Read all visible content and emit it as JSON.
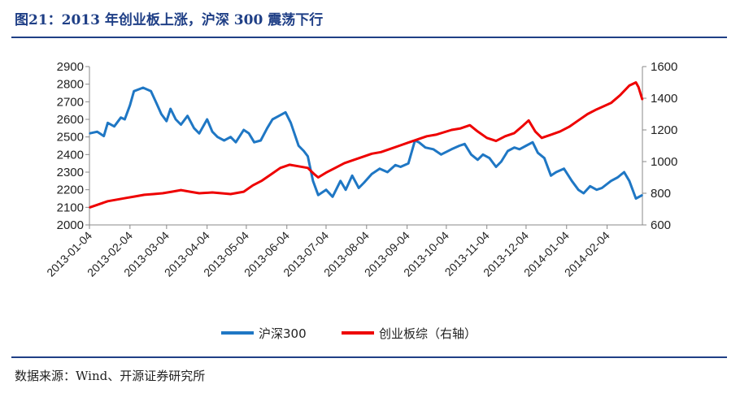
{
  "header": {
    "title": "图21：2013 年创业板上涨，沪深 300 震荡下行"
  },
  "footer": {
    "source": "数据来源：Wind、开源证券研究所"
  },
  "colors": {
    "title": "#1f3f86",
    "series_hs300": "#1f77c4",
    "series_gem": "#ee0000",
    "axis": "#888888"
  },
  "chart_data": {
    "type": "line",
    "title": "",
    "xlabel": "",
    "ylabel": "",
    "grid": false,
    "legend_position": "bottom",
    "x_ticks": [
      "2013-01-04",
      "2013-02-04",
      "2013-03-04",
      "2013-04-04",
      "2013-05-04",
      "2013-06-04",
      "2013-07-04",
      "2013-08-04",
      "2013-09-04",
      "2013-10-04",
      "2013-11-04",
      "2013-12-04",
      "2014-01-04",
      "2014-02-04"
    ],
    "y_left": {
      "ticks": [
        2000,
        2100,
        2200,
        2300,
        2400,
        2500,
        2600,
        2700,
        2800,
        2900
      ],
      "range": [
        2000,
        2900
      ]
    },
    "y_right": {
      "ticks": [
        600,
        800,
        1000,
        1200,
        1400,
        1600
      ],
      "range": [
        600,
        1600
      ]
    },
    "series": [
      {
        "name": "沪深300",
        "axis": "left",
        "points": [
          [
            "2013-01-04",
            2520
          ],
          [
            "2013-01-10",
            2530
          ],
          [
            "2013-01-15",
            2505
          ],
          [
            "2013-01-18",
            2580
          ],
          [
            "2013-01-23",
            2560
          ],
          [
            "2013-01-28",
            2610
          ],
          [
            "2013-01-31",
            2600
          ],
          [
            "2013-02-04",
            2680
          ],
          [
            "2013-02-07",
            2760
          ],
          [
            "2013-02-14",
            2780
          ],
          [
            "2013-02-20",
            2760
          ],
          [
            "2013-02-25",
            2680
          ],
          [
            "2013-02-28",
            2630
          ],
          [
            "2013-03-04",
            2590
          ],
          [
            "2013-03-07",
            2660
          ],
          [
            "2013-03-11",
            2600
          ],
          [
            "2013-03-15",
            2570
          ],
          [
            "2013-03-20",
            2620
          ],
          [
            "2013-03-25",
            2550
          ],
          [
            "2013-03-29",
            2520
          ],
          [
            "2013-04-04",
            2600
          ],
          [
            "2013-04-08",
            2530
          ],
          [
            "2013-04-12",
            2500
          ],
          [
            "2013-04-17",
            2480
          ],
          [
            "2013-04-22",
            2500
          ],
          [
            "2013-04-26",
            2470
          ],
          [
            "2013-05-02",
            2540
          ],
          [
            "2013-05-06",
            2520
          ],
          [
            "2013-05-10",
            2470
          ],
          [
            "2013-05-15",
            2480
          ],
          [
            "2013-05-20",
            2550
          ],
          [
            "2013-05-24",
            2600
          ],
          [
            "2013-05-29",
            2620
          ],
          [
            "2013-06-03",
            2640
          ],
          [
            "2013-06-07",
            2580
          ],
          [
            "2013-06-13",
            2450
          ],
          [
            "2013-06-17",
            2420
          ],
          [
            "2013-06-20",
            2390
          ],
          [
            "2013-06-24",
            2250
          ],
          [
            "2013-06-28",
            2170
          ],
          [
            "2013-07-04",
            2200
          ],
          [
            "2013-07-09",
            2160
          ],
          [
            "2013-07-15",
            2250
          ],
          [
            "2013-07-19",
            2200
          ],
          [
            "2013-07-24",
            2280
          ],
          [
            "2013-07-29",
            2210
          ],
          [
            "2013-08-02",
            2240
          ],
          [
            "2013-08-08",
            2290
          ],
          [
            "2013-08-14",
            2320
          ],
          [
            "2013-08-20",
            2300
          ],
          [
            "2013-08-26",
            2340
          ],
          [
            "2013-08-30",
            2330
          ],
          [
            "2013-09-05",
            2350
          ],
          [
            "2013-09-10",
            2480
          ],
          [
            "2013-09-13",
            2470
          ],
          [
            "2013-09-18",
            2440
          ],
          [
            "2013-09-24",
            2430
          ],
          [
            "2013-09-30",
            2400
          ],
          [
            "2013-10-08",
            2430
          ],
          [
            "2013-10-14",
            2450
          ],
          [
            "2013-10-18",
            2460
          ],
          [
            "2013-10-23",
            2400
          ],
          [
            "2013-10-28",
            2370
          ],
          [
            "2013-11-01",
            2400
          ],
          [
            "2013-11-06",
            2380
          ],
          [
            "2013-11-11",
            2330
          ],
          [
            "2013-11-15",
            2360
          ],
          [
            "2013-11-20",
            2420
          ],
          [
            "2013-11-25",
            2440
          ],
          [
            "2013-11-29",
            2430
          ],
          [
            "2013-12-04",
            2450
          ],
          [
            "2013-12-09",
            2470
          ],
          [
            "2013-12-13",
            2410
          ],
          [
            "2013-12-18",
            2380
          ],
          [
            "2013-12-23",
            2280
          ],
          [
            "2013-12-27",
            2300
          ],
          [
            "2014-01-02",
            2320
          ],
          [
            "2014-01-08",
            2250
          ],
          [
            "2014-01-13",
            2200
          ],
          [
            "2014-01-17",
            2180
          ],
          [
            "2014-01-22",
            2220
          ],
          [
            "2014-01-27",
            2200
          ],
          [
            "2014-01-31",
            2210
          ],
          [
            "2014-02-07",
            2250
          ],
          [
            "2014-02-12",
            2270
          ],
          [
            "2014-02-17",
            2300
          ],
          [
            "2014-02-21",
            2250
          ],
          [
            "2014-02-26",
            2150
          ],
          [
            "2014-03-03",
            2170
          ]
        ]
      },
      {
        "name": "创业板综（右轴）",
        "axis": "right",
        "points": [
          [
            "2013-01-04",
            710
          ],
          [
            "2013-01-11",
            730
          ],
          [
            "2013-01-18",
            750
          ],
          [
            "2013-01-25",
            760
          ],
          [
            "2013-02-01",
            770
          ],
          [
            "2013-02-08",
            780
          ],
          [
            "2013-02-15",
            790
          ],
          [
            "2013-02-22",
            795
          ],
          [
            "2013-03-01",
            800
          ],
          [
            "2013-03-08",
            810
          ],
          [
            "2013-03-15",
            820
          ],
          [
            "2013-03-22",
            810
          ],
          [
            "2013-03-29",
            800
          ],
          [
            "2013-04-08",
            805
          ],
          [
            "2013-04-15",
            800
          ],
          [
            "2013-04-22",
            795
          ],
          [
            "2013-05-02",
            810
          ],
          [
            "2013-05-09",
            850
          ],
          [
            "2013-05-16",
            880
          ],
          [
            "2013-05-23",
            920
          ],
          [
            "2013-05-30",
            960
          ],
          [
            "2013-06-06",
            980
          ],
          [
            "2013-06-13",
            970
          ],
          [
            "2013-06-20",
            960
          ],
          [
            "2013-06-25",
            920
          ],
          [
            "2013-06-28",
            900
          ],
          [
            "2013-07-04",
            930
          ],
          [
            "2013-07-11",
            960
          ],
          [
            "2013-07-18",
            990
          ],
          [
            "2013-07-25",
            1010
          ],
          [
            "2013-08-01",
            1030
          ],
          [
            "2013-08-08",
            1050
          ],
          [
            "2013-08-15",
            1060
          ],
          [
            "2013-08-22",
            1080
          ],
          [
            "2013-08-29",
            1100
          ],
          [
            "2013-09-05",
            1120
          ],
          [
            "2013-09-12",
            1140
          ],
          [
            "2013-09-19",
            1160
          ],
          [
            "2013-09-26",
            1170
          ],
          [
            "2013-10-08",
            1200
          ],
          [
            "2013-10-15",
            1210
          ],
          [
            "2013-10-22",
            1230
          ],
          [
            "2013-10-28",
            1190
          ],
          [
            "2013-11-04",
            1150
          ],
          [
            "2013-11-11",
            1130
          ],
          [
            "2013-11-18",
            1160
          ],
          [
            "2013-11-25",
            1180
          ],
          [
            "2013-12-02",
            1230
          ],
          [
            "2013-12-06",
            1260
          ],
          [
            "2013-12-11",
            1190
          ],
          [
            "2013-12-16",
            1150
          ],
          [
            "2013-12-23",
            1170
          ],
          [
            "2013-12-30",
            1190
          ],
          [
            "2014-01-06",
            1220
          ],
          [
            "2014-01-13",
            1260
          ],
          [
            "2014-01-20",
            1300
          ],
          [
            "2014-01-27",
            1330
          ],
          [
            "2014-02-07",
            1370
          ],
          [
            "2014-02-14",
            1420
          ],
          [
            "2014-02-21",
            1480
          ],
          [
            "2014-02-26",
            1500
          ],
          [
            "2014-02-28",
            1470
          ],
          [
            "2014-03-03",
            1390
          ]
        ]
      }
    ]
  }
}
